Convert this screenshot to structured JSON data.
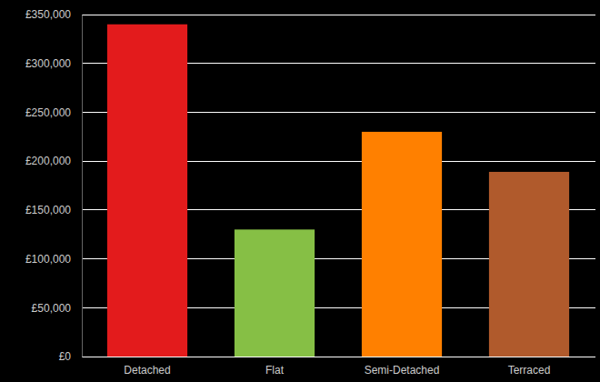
{
  "chart_data": {
    "type": "bar",
    "categories": [
      "Detached",
      "Flat",
      "Semi-Detached",
      "Terraced"
    ],
    "values": [
      340000,
      130000,
      230000,
      189000
    ],
    "colors": [
      "#e31b1c",
      "#86bf45",
      "#ff8000",
      "#b05a2c"
    ],
    "ylim": [
      0,
      350000
    ],
    "yticks": [
      {
        "value": 0,
        "label": "£0"
      },
      {
        "value": 50000,
        "label": "£50,000"
      },
      {
        "value": 100000,
        "label": "£100,000"
      },
      {
        "value": 150000,
        "label": "£150,000"
      },
      {
        "value": 200000,
        "label": "£200,000"
      },
      {
        "value": 250000,
        "label": "£250,000"
      },
      {
        "value": 300000,
        "label": "£300,000"
      },
      {
        "value": 350000,
        "label": "£350,000"
      }
    ],
    "grid": true
  }
}
